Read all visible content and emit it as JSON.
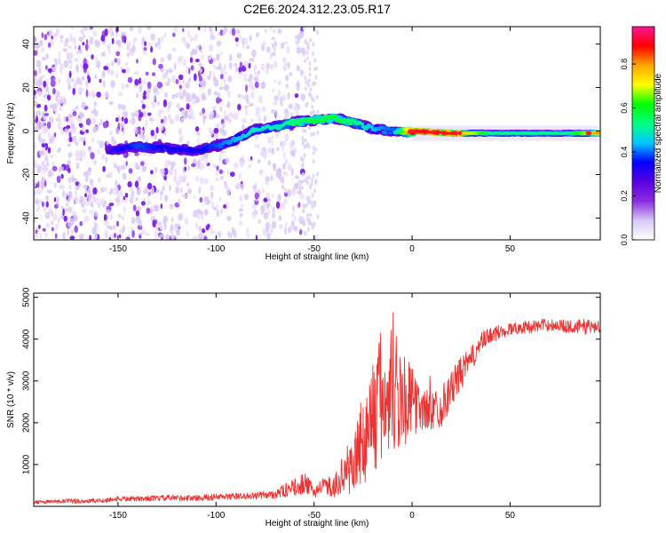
{
  "title": "C2E6.2024.312.23.05.R17",
  "chart_data": [
    {
      "type": "heatmap",
      "xlabel": "Height of straight line (km)",
      "ylabel": "Frequency (Hz)",
      "xlim": [
        -193,
        96
      ],
      "ylim": [
        -50,
        48
      ],
      "x_ticks": [
        -150,
        -100,
        -50,
        0,
        50
      ],
      "y_ticks": [
        -40,
        -20,
        0,
        20,
        40
      ],
      "colorbar": {
        "label": "Normalized spectral amplitude",
        "range": [
          0,
          0.97
        ],
        "ticks": [
          0,
          0.2,
          0.4,
          0.6,
          0.8
        ],
        "colormap": [
          "#ffffff",
          "#d7c8f5",
          "#8a2be2",
          "#5a00e0",
          "#0000ff",
          "#00c8ff",
          "#00ff80",
          "#00ff00",
          "#ffff00",
          "#ffa500",
          "#ff0000",
          "#ff1493"
        ]
      },
      "ridge": {
        "x": [
          -155,
          -140,
          -125,
          -110,
          -100,
          -90,
          -80,
          -70,
          -60,
          -50,
          -40,
          -30,
          -20,
          -10,
          0,
          20,
          40,
          60,
          80,
          95
        ],
        "frequency": [
          -9,
          -7,
          -8,
          -9,
          -7,
          -4,
          1,
          2,
          4,
          5,
          6,
          4,
          1,
          0,
          0,
          -1,
          -1,
          -1,
          -1,
          -1
        ],
        "amplitude": [
          0.3,
          0.4,
          0.35,
          0.35,
          0.4,
          0.45,
          0.5,
          0.5,
          0.55,
          0.6,
          0.6,
          0.55,
          0.45,
          0.4,
          0.95,
          0.9,
          0.55,
          0.55,
          0.55,
          0.85
        ]
      },
      "noise_region": {
        "x": [
          -193,
          -55
        ],
        "frequency": [
          -50,
          48
        ]
      }
    },
    {
      "type": "line",
      "xlabel": "Height of straight line (km)",
      "ylabel": "SNR (10 * v/v)",
      "xlim": [
        -193,
        96
      ],
      "ylim": [
        0,
        5100
      ],
      "x_ticks": [
        -150,
        -100,
        -50,
        0,
        50
      ],
      "y_ticks": [
        1000,
        2000,
        3000,
        4000,
        5000
      ],
      "color": "#ee3333",
      "series": [
        {
          "x": [
            -193,
            -175,
            -160,
            -150,
            -140,
            -125,
            -110,
            -100,
            -90,
            -80,
            -70,
            -60,
            -55,
            -50,
            -45,
            -40,
            -35,
            -30,
            -25,
            -20,
            -15,
            -10,
            -5,
            0,
            5,
            10,
            15,
            20,
            25,
            30,
            35,
            40,
            50,
            60,
            70,
            80,
            90,
            96
          ],
          "values": [
            100,
            120,
            130,
            180,
            180,
            200,
            200,
            220,
            240,
            250,
            300,
            450,
            550,
            350,
            500,
            450,
            800,
            1000,
            1600,
            2200,
            2600,
            3000,
            2600,
            2500,
            2300,
            2300,
            2400,
            2800,
            3200,
            3500,
            3900,
            4100,
            4250,
            4300,
            4350,
            4300,
            4300,
            4300
          ],
          "spread": [
            40,
            60,
            60,
            60,
            60,
            70,
            70,
            80,
            80,
            80,
            120,
            200,
            260,
            150,
            200,
            250,
            450,
            800,
            1100,
            1500,
            1800,
            1900,
            1300,
            800,
            500,
            500,
            500,
            450,
            400,
            300,
            250,
            200,
            150,
            150,
            150,
            150,
            200,
            150
          ]
        }
      ]
    }
  ]
}
